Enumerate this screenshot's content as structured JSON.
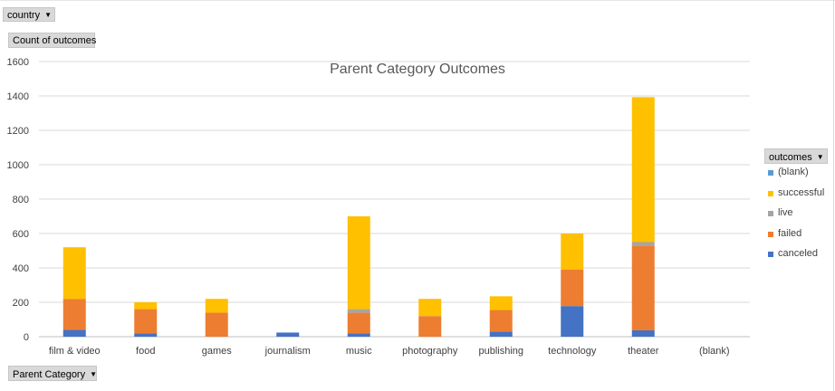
{
  "filters": {
    "country_label": "country",
    "value_label": "Count of outcomes",
    "axis_label": "Parent Category",
    "legend_label": "outcomes"
  },
  "chart_data": {
    "type": "bar",
    "stacked": true,
    "title": "Parent Category Outcomes",
    "categories": [
      "film & video",
      "food",
      "games",
      "journalism",
      "music",
      "photography",
      "publishing",
      "technology",
      "theater",
      "(blank)"
    ],
    "series": [
      {
        "name": "canceled",
        "color": "#4472C4",
        "values": [
          40,
          20,
          0,
          24,
          20,
          0,
          30,
          178,
          37,
          0
        ]
      },
      {
        "name": "failed",
        "color": "#ED7D31",
        "values": [
          180,
          140,
          140,
          0,
          120,
          120,
          125,
          213,
          493,
          0
        ]
      },
      {
        "name": "live",
        "color": "#A5A5A5",
        "values": [
          0,
          0,
          0,
          0,
          20,
          0,
          0,
          0,
          20,
          0
        ]
      },
      {
        "name": "successful",
        "color": "#FFC000",
        "values": [
          300,
          40,
          80,
          0,
          540,
          100,
          80,
          209,
          843,
          0
        ]
      },
      {
        "name": "(blank)",
        "color": "#5B9BD5",
        "values": [
          0,
          0,
          0,
          0,
          0,
          0,
          0,
          0,
          0,
          0
        ]
      }
    ],
    "ylim": [
      0,
      1600
    ],
    "yticks": [
      "0",
      "200",
      "400",
      "600",
      "800",
      "1000",
      "1200",
      "1400",
      "1600"
    ],
    "grid": true,
    "legend_position": "right"
  }
}
